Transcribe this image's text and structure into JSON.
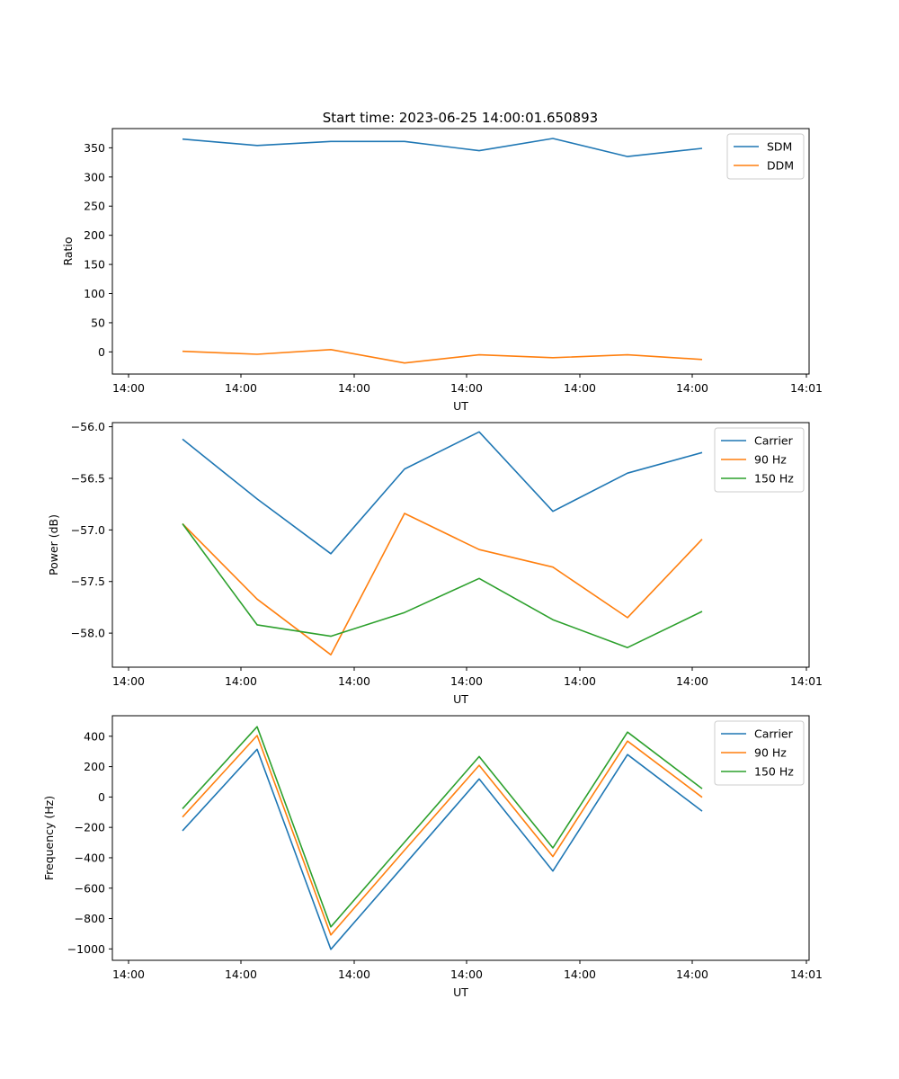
{
  "chart_data": [
    {
      "type": "line",
      "title": "Start time: 2023-06-25 14:00:01.650893",
      "xlabel": "UT",
      "ylabel": "Ratio",
      "x_tick_labels": [
        "14:00",
        "14:00",
        "14:00",
        "14:00",
        "14:00",
        "14:00",
        "14:01"
      ],
      "y_ticks": [
        0,
        50,
        100,
        150,
        200,
        250,
        300,
        350
      ],
      "ylim": [
        -38,
        383
      ],
      "grid": false,
      "legend_position": "top-right",
      "series": [
        {
          "name": "SDM",
          "color": "#1f77b4",
          "values": [
            365,
            354,
            361,
            361,
            345,
            366,
            335,
            349
          ]
        },
        {
          "name": "DDM",
          "color": "#ff7f0e",
          "values": [
            1,
            -4,
            4,
            -19,
            -5,
            -10,
            -5,
            -13
          ]
        }
      ]
    },
    {
      "type": "line",
      "title": "",
      "xlabel": "UT",
      "ylabel": "Power (dB)",
      "x_tick_labels": [
        "14:00",
        "14:00",
        "14:00",
        "14:00",
        "14:00",
        "14:00",
        "14:01"
      ],
      "y_ticks": [
        -58.0,
        -57.5,
        -57.0,
        -56.5,
        -56.0
      ],
      "y_tick_labels": [
        "−58.0",
        "−57.5",
        "−57.0",
        "−56.5",
        "−56.0"
      ],
      "ylim": [
        -58.33,
        -55.96
      ],
      "grid": false,
      "legend_position": "top-right",
      "series": [
        {
          "name": "Carrier",
          "color": "#1f77b4",
          "values": [
            -56.12,
            -56.7,
            -57.23,
            -56.41,
            -56.05,
            -56.82,
            -56.45,
            -56.25
          ]
        },
        {
          "name": "90 Hz",
          "color": "#ff7f0e",
          "values": [
            -56.94,
            -57.67,
            -58.21,
            -56.84,
            -57.19,
            -57.36,
            -57.85,
            -57.09
          ]
        },
        {
          "name": "150 Hz",
          "color": "#2ca02c",
          "values": [
            -56.94,
            -57.92,
            -58.03,
            -57.8,
            -57.47,
            -57.87,
            -58.14,
            -57.79
          ]
        }
      ]
    },
    {
      "type": "line",
      "title": "",
      "xlabel": "UT",
      "ylabel": "Frequency (Hz)",
      "x_tick_labels": [
        "14:00",
        "14:00",
        "14:00",
        "14:00",
        "14:00",
        "14:00",
        "14:01"
      ],
      "y_ticks": [
        -1000,
        -800,
        -600,
        -400,
        -200,
        0,
        200,
        400
      ],
      "y_tick_labels": [
        "−1000",
        "−800",
        "−600",
        "−400",
        "−200",
        "0",
        "200",
        "400"
      ],
      "ylim": [
        -1075,
        535
      ],
      "grid": false,
      "legend_position": "top-right",
      "series": [
        {
          "name": "Carrier",
          "color": "#1f77b4",
          "values": [
            -222,
            314,
            -1003,
            -446,
            119,
            -487,
            279,
            -93
          ]
        },
        {
          "name": "90 Hz",
          "color": "#ff7f0e",
          "values": [
            -132,
            405,
            -908,
            -350,
            209,
            -392,
            368,
            -2
          ]
        },
        {
          "name": "150 Hz",
          "color": "#2ca02c",
          "values": [
            -77,
            463,
            -855,
            -297,
            266,
            -335,
            427,
            55
          ]
        }
      ]
    }
  ]
}
